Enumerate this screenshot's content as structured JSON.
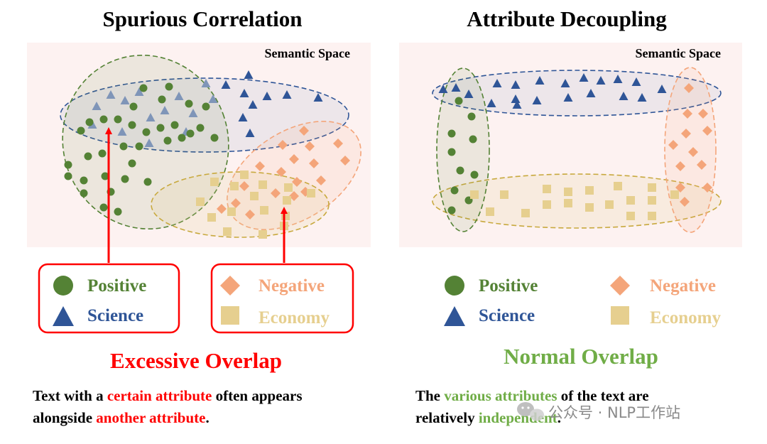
{
  "colors": {
    "positive": "#548235",
    "science": "#2f5597",
    "negative": "#f4a57a",
    "economy": "#e6cf8f",
    "highlight_red": "#ff0000",
    "highlight_green": "#70ad47",
    "panel_bg": "#fdf2f1"
  },
  "left": {
    "title": "Spurious Correlation",
    "space_label": "Semantic Space",
    "legend": {
      "positive": "Positive",
      "science": "Science",
      "negative": "Negative",
      "economy": "Economy"
    },
    "overlap_label": "Excessive Overlap",
    "caption": {
      "line1_a": "Text with a ",
      "line1_b": "certain attribute",
      "line1_c": " often appears",
      "line2_a": "alongside ",
      "line2_b": "another attribute",
      "line2_c": "."
    }
  },
  "right": {
    "title": "Attribute Decoupling",
    "space_label": "Semantic Space",
    "legend": {
      "positive": "Positive",
      "science": "Science",
      "negative": "Negative",
      "economy": "Economy"
    },
    "overlap_label": "Normal Overlap",
    "caption": {
      "line1_a": "The ",
      "line1_b": "various attributes",
      "line1_c": " of the text are",
      "line2_a": "relatively ",
      "line2_b": "independent",
      "line2_c": "."
    }
  },
  "watermark": "公众号 · NLP工作站",
  "icons": {
    "positive": "circle-icon",
    "science": "triangle-icon",
    "negative": "diamond-icon",
    "economy": "square-icon",
    "watermark": "wechat-icon"
  }
}
